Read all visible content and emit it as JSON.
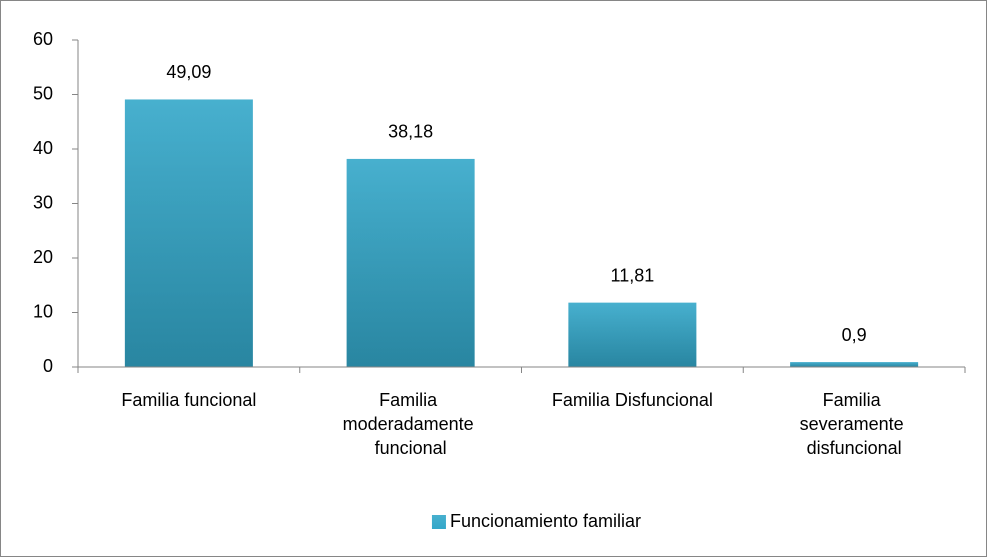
{
  "chart_data": {
    "type": "bar",
    "categories": [
      "Familia funcional",
      "Familia moderadamente funcional",
      "Familia Disfuncional",
      "Familia severamente disfuncional"
    ],
    "series": [
      {
        "name": "Funcionamiento familiar",
        "color": "#33a7c9",
        "values": [
          49.09,
          38.18,
          11.81,
          0.9
        ],
        "value_labels": [
          "49,09",
          "38,18",
          "11,81",
          "0,9"
        ]
      }
    ],
    "ylim": [
      0,
      60
    ],
    "yticks": [
      0,
      10,
      20,
      30,
      40,
      50,
      60
    ],
    "grid": false,
    "legend": "bottom"
  }
}
